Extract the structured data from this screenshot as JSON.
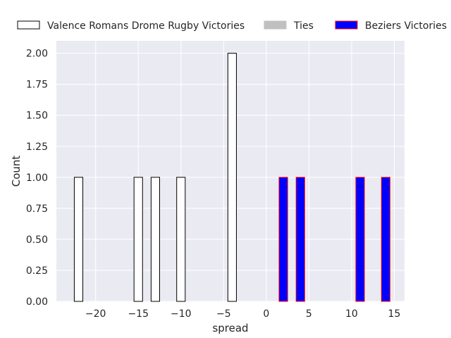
{
  "chart_data": {
    "type": "bar",
    "xlabel": "spread",
    "ylabel": "Count",
    "xlim": [
      -24.6,
      16.2
    ],
    "ylim": [
      0,
      2.1
    ],
    "xticks": [
      -20,
      -15,
      -10,
      -5,
      0,
      5,
      10,
      15
    ],
    "xtick_labels": [
      "−20",
      "−15",
      "−10",
      "−5",
      "0",
      "5",
      "10",
      "15"
    ],
    "yticks": [
      0,
      0.25,
      0.5,
      0.75,
      1.0,
      1.25,
      1.5,
      1.75,
      2.0
    ],
    "ytick_labels": [
      "0.00",
      "0.25",
      "0.50",
      "0.75",
      "1.00",
      "1.25",
      "1.50",
      "1.75",
      "2.00"
    ],
    "bin_width": 1.0,
    "grid": true,
    "legend_position": "top, above plot",
    "background_color": "#eaeaf2",
    "series": [
      {
        "name": "Valence Romans Drome Rugby Victories",
        "fill": "#ffffff",
        "edge": "#000000",
        "bars": [
          {
            "x": -22,
            "count": 1
          },
          {
            "x": -15,
            "count": 1
          },
          {
            "x": -13,
            "count": 1
          },
          {
            "x": -10,
            "count": 1
          },
          {
            "x": -4,
            "count": 2
          }
        ]
      },
      {
        "name": "Ties",
        "fill": "#c0c0c0",
        "edge": "#c0c0c0",
        "bars": []
      },
      {
        "name": "Beziers Victories",
        "fill": "#0000ff",
        "edge": "#ff0000",
        "bars": [
          {
            "x": 2,
            "count": 1
          },
          {
            "x": 4,
            "count": 1
          },
          {
            "x": 11,
            "count": 1
          },
          {
            "x": 14,
            "count": 1
          }
        ]
      }
    ]
  }
}
